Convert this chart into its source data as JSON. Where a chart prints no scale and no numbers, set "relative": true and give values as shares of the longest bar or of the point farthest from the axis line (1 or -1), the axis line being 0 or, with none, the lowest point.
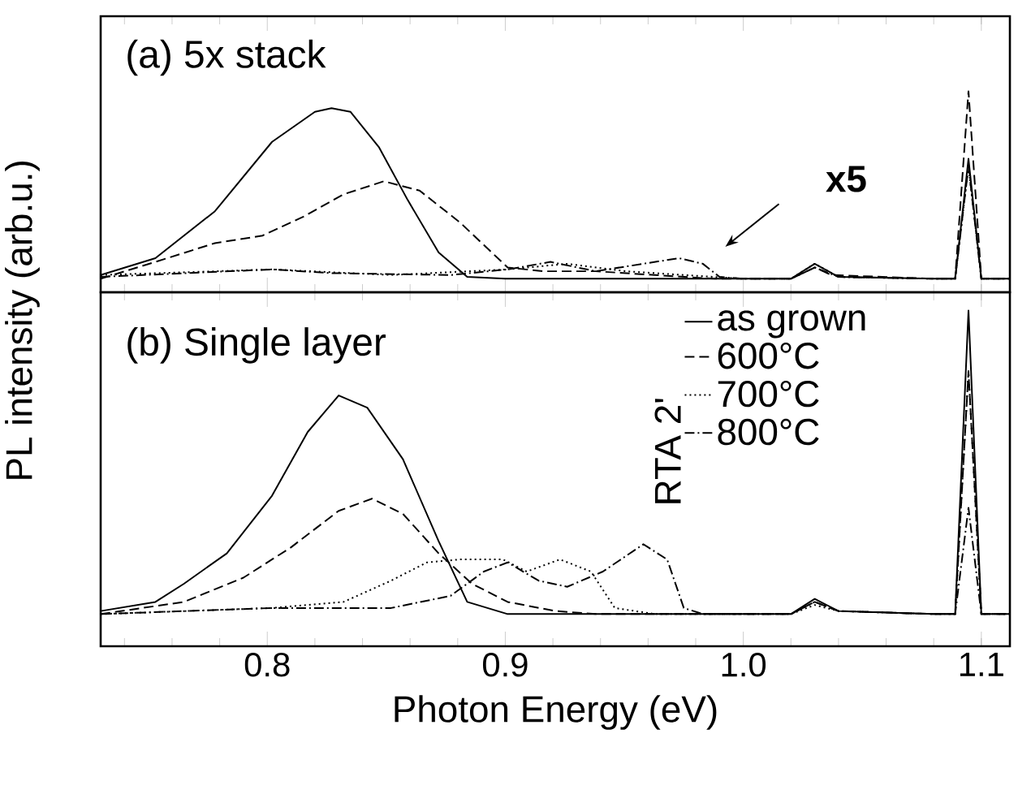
{
  "chart_data": [
    {
      "type": "line",
      "title": "(a) 5x stack",
      "relative": true,
      "tick_labels": false,
      "legend": false,
      "xlim": [
        0.73,
        1.112
      ],
      "xticks": [
        0.8,
        0.9,
        1.0,
        1.1,
        {
          "value": 0.74,
          "label": null
        },
        {
          "value": 0.76,
          "label": null
        },
        {
          "value": 0.78,
          "label": null
        },
        {
          "value": 0.82,
          "label": null
        },
        {
          "value": 0.84,
          "label": null
        },
        {
          "value": 0.86,
          "label": null
        },
        {
          "value": 0.88,
          "label": null
        },
        {
          "value": 0.92,
          "label": null
        },
        {
          "value": 0.94,
          "label": null
        },
        {
          "value": 0.96,
          "label": null
        },
        {
          "value": 0.98,
          "label": null
        },
        {
          "value": 1.02,
          "label": null
        },
        {
          "value": 1.04,
          "label": null
        },
        {
          "value": 1.06,
          "label": null
        },
        {
          "value": 1.08,
          "label": null
        },
        {
          "value": 1.1,
          "label": null
        }
      ],
      "annotations": [
        "x5"
      ],
      "series": [
        {
          "color": "#000000",
          "line_style": "solid",
          "x": [
            0.73,
            0.753,
            0.778,
            0.802,
            0.82,
            0.827,
            0.835,
            0.847,
            0.859,
            0.872,
            0.884,
            0.9,
            1.02,
            1.03,
            1.04,
            1.08,
            1.089,
            1.0946,
            1.1,
            1.112
          ],
          "values": [
            0.02,
            0.11,
            0.36,
            0.73,
            0.89,
            0.91,
            0.89,
            0.7,
            0.42,
            0.14,
            0.01,
            0,
            0,
            0.08,
            0.01,
            0,
            0,
            0.64,
            0,
            0
          ]
        },
        {
          "color": "#000000",
          "line_style": "dashed",
          "x": [
            0.73,
            0.753,
            0.778,
            0.798,
            0.815,
            0.832,
            0.849,
            0.864,
            0.881,
            0.901,
            0.916,
            0.938,
            0.963,
            0.988,
            1.02,
            1.03,
            1.037,
            1.08,
            1.089,
            1.0946,
            1.1,
            1.112
          ],
          "values": [
            0,
            0.09,
            0.19,
            0.23,
            0.33,
            0.45,
            0.52,
            0.47,
            0.3,
            0.06,
            0.04,
            0.04,
            0.02,
            0,
            0,
            0.06,
            0.02,
            0,
            0,
            1.0,
            0,
            0
          ]
        },
        {
          "color": "#000000",
          "line_style": "dotted",
          "x": [
            0.73,
            0.802,
            0.852,
            0.901,
            0.926,
            0.951,
            0.975,
            1.0,
            1.02,
            1.03,
            1.04,
            1.08,
            1.089,
            1.0946,
            1.1,
            1.112
          ],
          "values": [
            0.02,
            0.05,
            0.02,
            0.05,
            0.08,
            0.04,
            0.02,
            0,
            0,
            0.08,
            0.01,
            0,
            0,
            0.6,
            0,
            0
          ]
        },
        {
          "color": "#000000",
          "line_style": "dashdot",
          "x": [
            0.73,
            0.802,
            0.827,
            0.877,
            0.901,
            0.919,
            0.938,
            0.958,
            0.973,
            0.983,
            0.99,
            1.0,
            1.02,
            1.03,
            1.04,
            1.08,
            1.089,
            1.0946,
            1.1,
            1.112
          ],
          "values": [
            0.01,
            0.05,
            0.03,
            0.02,
            0.05,
            0.09,
            0.04,
            0.08,
            0.11,
            0.08,
            0.01,
            0,
            0,
            0.06,
            0.01,
            0,
            0,
            0.6,
            0,
            0
          ]
        }
      ]
    },
    {
      "type": "line",
      "title": "(b) Single layer",
      "relative": true,
      "tick_labels": "x",
      "legend": "right",
      "legend_title": "RTA 2'",
      "xlabel": "Photon Energy (eV)",
      "ylabel": "PL intensity (arb.u.)",
      "xlim": [
        0.73,
        1.112
      ],
      "xticks": [
        0.8,
        0.9,
        {
          "value": 1.0,
          "label": "1.0"
        },
        1.1,
        {
          "value": 0.74,
          "label": null
        },
        {
          "value": 0.76,
          "label": null
        },
        {
          "value": 0.78,
          "label": null
        },
        {
          "value": 0.82,
          "label": null
        },
        {
          "value": 0.84,
          "label": null
        },
        {
          "value": 0.86,
          "label": null
        },
        {
          "value": 0.88,
          "label": null
        },
        {
          "value": 0.92,
          "label": null
        },
        {
          "value": 0.94,
          "label": null
        },
        {
          "value": 0.96,
          "label": null
        },
        {
          "value": 0.98,
          "label": null
        },
        {
          "value": 1.02,
          "label": null
        },
        {
          "value": 1.04,
          "label": null
        },
        {
          "value": 1.06,
          "label": null
        },
        {
          "value": 1.08,
          "label": null
        },
        {
          "value": 1.1,
          "label": null
        }
      ],
      "series": [
        {
          "name": "as grown",
          "color": "#000000",
          "line_style": "solid",
          "x": [
            0.73,
            0.753,
            0.765,
            0.783,
            0.802,
            0.817,
            0.83,
            0.842,
            0.857,
            0.872,
            0.884,
            0.901,
            1.02,
            1.03,
            1.04,
            1.08,
            1.089,
            1.0946,
            1.1,
            1.112
          ],
          "values": [
            0.01,
            0.04,
            0.1,
            0.2,
            0.39,
            0.6,
            0.72,
            0.68,
            0.51,
            0.24,
            0.04,
            0,
            0,
            0.05,
            0.01,
            0,
            0,
            1.0,
            0,
            0
          ]
        },
        {
          "name": "600°C",
          "color": "#000000",
          "line_style": "dashed",
          "x": [
            0.73,
            0.765,
            0.79,
            0.81,
            0.83,
            0.844,
            0.857,
            0.872,
            0.886,
            0.901,
            0.921,
            0.938,
            1.02,
            1.03,
            1.04,
            1.08,
            1.089,
            1.0946,
            1.1,
            1.112
          ],
          "values": [
            0,
            0.04,
            0.12,
            0.22,
            0.34,
            0.38,
            0.33,
            0.2,
            0.1,
            0.04,
            0.01,
            0,
            0,
            0.04,
            0.01,
            0,
            0,
            0.8,
            0,
            0
          ]
        },
        {
          "name": "700°C",
          "color": "#000000",
          "line_style": "dotted",
          "x": [
            0.73,
            0.802,
            0.832,
            0.852,
            0.867,
            0.881,
            0.899,
            0.909,
            0.923,
            0.936,
            0.946,
            0.963,
            1.02,
            1.03,
            1.04,
            1.08,
            1.089,
            1.0946,
            1.1,
            1.112
          ],
          "values": [
            0,
            0.02,
            0.04,
            0.11,
            0.17,
            0.18,
            0.18,
            0.14,
            0.18,
            0.14,
            0.02,
            0,
            0,
            0.03,
            0.01,
            0,
            0,
            0.8,
            0,
            0
          ]
        },
        {
          "name": "800°C",
          "color": "#000000",
          "line_style": "dashdot",
          "x": [
            0.73,
            0.802,
            0.852,
            0.877,
            0.891,
            0.901,
            0.914,
            0.926,
            0.941,
            0.958,
            0.968,
            0.975,
            0.983,
            1.02,
            1.03,
            1.04,
            1.08,
            1.089,
            1.0946,
            1.1,
            1.112
          ],
          "values": [
            0,
            0.02,
            0.02,
            0.06,
            0.14,
            0.17,
            0.11,
            0.09,
            0.14,
            0.23,
            0.18,
            0.02,
            0,
            0,
            0.04,
            0.01,
            0,
            0,
            0.35,
            0,
            0
          ]
        }
      ]
    }
  ]
}
